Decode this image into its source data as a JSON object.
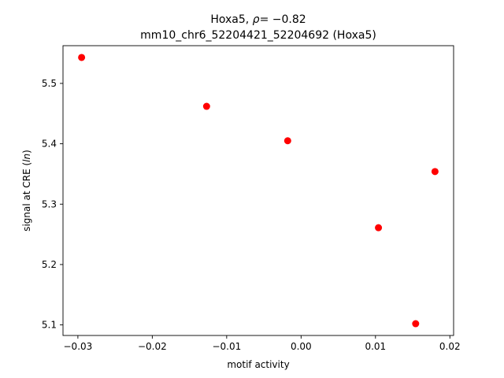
{
  "chart_data": {
    "type": "scatter",
    "title_line1_prefix": "Hoxa5, ",
    "title_line1_symbol": "ρ",
    "title_line1_suffix": "= −0.82",
    "title_line2": "mm10_chr6_52204421_52204692 (Hoxa5)",
    "xlabel": "motif activity",
    "ylabel_prefix": "signal at CRE (",
    "ylabel_italic": "ln",
    "ylabel_suffix": ")",
    "xlim": [
      -0.032,
      0.0205
    ],
    "ylim": [
      5.0825,
      5.5625
    ],
    "xticks": [
      -0.03,
      -0.02,
      -0.01,
      0.0,
      0.01,
      0.02
    ],
    "xtick_labels": [
      "−0.03",
      "−0.02",
      "−0.01",
      "0.00",
      "0.01",
      "0.02"
    ],
    "yticks": [
      5.1,
      5.2,
      5.3,
      5.4,
      5.5
    ],
    "ytick_labels": [
      "5.1",
      "5.2",
      "5.3",
      "5.4",
      "5.5"
    ],
    "grid": false,
    "marker_color": "#ff0000",
    "points": [
      {
        "x": -0.0295,
        "y": 5.543
      },
      {
        "x": -0.0127,
        "y": 5.462
      },
      {
        "x": -0.0018,
        "y": 5.405
      },
      {
        "x": 0.0104,
        "y": 5.261
      },
      {
        "x": 0.018,
        "y": 5.354
      },
      {
        "x": 0.0154,
        "y": 5.102
      }
    ]
  }
}
